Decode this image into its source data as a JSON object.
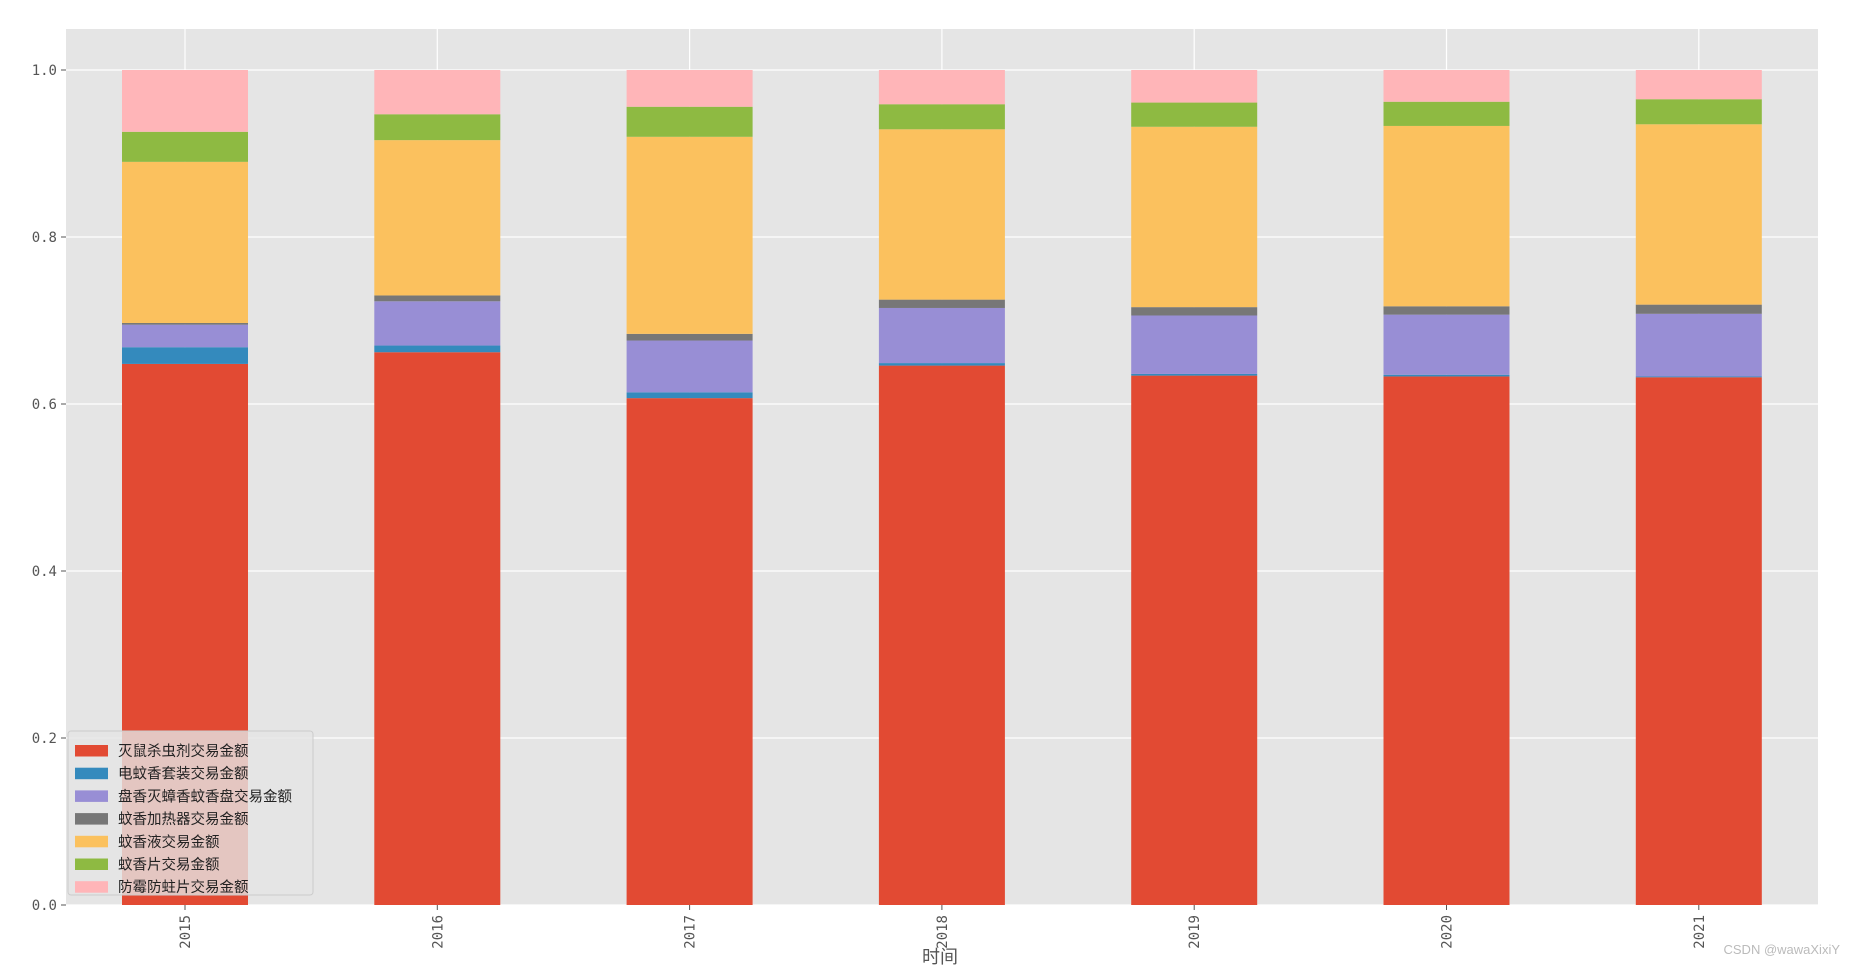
{
  "chart_data": {
    "type": "bar",
    "stacked": true,
    "categories": [
      "2015",
      "2016",
      "2017",
      "2018",
      "2019",
      "2020",
      "2021"
    ],
    "xlabel": "时间",
    "ylabel": "",
    "ylim": [
      0,
      1.0
    ],
    "yticks": [
      "0.0",
      "0.2",
      "0.4",
      "0.6",
      "0.8",
      "1.0"
    ],
    "grid": true,
    "legend_position": "bottom-left",
    "series": [
      {
        "name": "灭鼠杀虫剂交易金额",
        "color": "#E24A33",
        "values": [
          0.648,
          0.662,
          0.607,
          0.646,
          0.634,
          0.633,
          0.632
        ]
      },
      {
        "name": "电蚊香套装交易金额",
        "color": "#348ABD",
        "values": [
          0.02,
          0.008,
          0.007,
          0.003,
          0.002,
          0.002,
          0.001
        ]
      },
      {
        "name": "盘香灭蟑香蚊香盘交易金额",
        "color": "#988ED5",
        "values": [
          0.027,
          0.053,
          0.062,
          0.066,
          0.07,
          0.072,
          0.075
        ]
      },
      {
        "name": "蚊香加热器交易金额",
        "color": "#777777",
        "values": [
          0.002,
          0.007,
          0.008,
          0.01,
          0.01,
          0.01,
          0.011
        ]
      },
      {
        "name": "蚊香液交易金额",
        "color": "#FBC15E",
        "values": [
          0.193,
          0.186,
          0.236,
          0.204,
          0.216,
          0.216,
          0.216
        ]
      },
      {
        "name": "蚊香片交易金额",
        "color": "#8EBA42",
        "values": [
          0.036,
          0.031,
          0.036,
          0.03,
          0.029,
          0.029,
          0.03
        ]
      },
      {
        "name": "防霉防蛀片交易金额",
        "color": "#FFB5B8",
        "values": [
          0.074,
          0.053,
          0.044,
          0.041,
          0.039,
          0.038,
          0.035
        ]
      }
    ]
  },
  "watermark": "CSDN @wawaXixiY"
}
